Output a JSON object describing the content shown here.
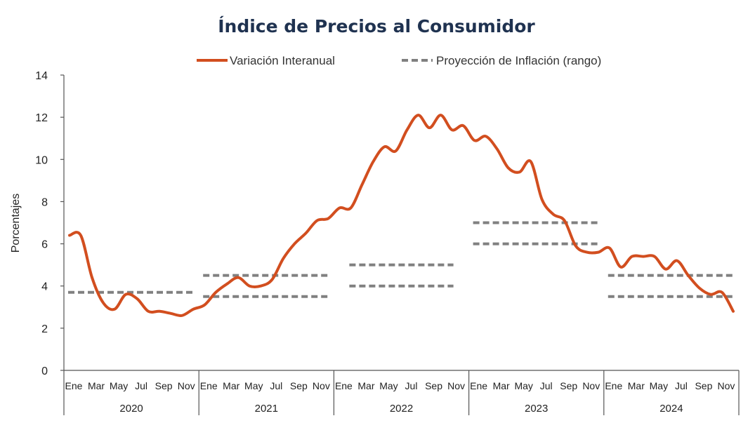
{
  "chart_data": {
    "type": "line",
    "title": "Índice de Precios al Consumidor",
    "ylabel": "Porcentajes",
    "xlabel": "",
    "ylim": [
      0,
      14
    ],
    "yticks": [
      0,
      2,
      4,
      6,
      8,
      10,
      12,
      14
    ],
    "grid": false,
    "legend_position": "top",
    "years": [
      "2020",
      "2021",
      "2022",
      "2023",
      "2024"
    ],
    "month_tick_labels": [
      "Ene",
      "Mar",
      "May",
      "Jul",
      "Sep",
      "Nov"
    ],
    "series": [
      {
        "name": "Variación Interanual",
        "color": "#d24e1f",
        "style": "solid",
        "values": [
          6.4,
          6.4,
          4.4,
          3.2,
          2.9,
          3.6,
          3.4,
          2.8,
          2.8,
          2.7,
          2.6,
          2.9,
          3.1,
          3.7,
          4.1,
          4.4,
          4.0,
          4.0,
          4.3,
          5.3,
          6.0,
          6.5,
          7.1,
          7.2,
          7.7,
          7.7,
          8.8,
          9.9,
          10.6,
          10.4,
          11.4,
          12.1,
          11.5,
          12.1,
          11.4,
          11.6,
          10.9,
          11.1,
          10.5,
          9.6,
          9.4,
          9.9,
          8.1,
          7.4,
          7.1,
          5.9,
          5.6,
          5.6,
          5.8,
          4.9,
          5.4,
          5.4,
          5.4,
          4.8,
          5.2,
          4.5,
          3.9,
          3.6,
          3.7,
          2.8
        ]
      },
      {
        "name": "Proyección de Inflación (rango)",
        "color": "#808080",
        "style": "dashed",
        "ranges": [
          {
            "year": "2020",
            "upper": 3.7,
            "lower": 3.7
          },
          {
            "year": "2021",
            "upper": 4.5,
            "lower": 3.5
          },
          {
            "year": "2022",
            "upper": 5.0,
            "lower": 4.0
          },
          {
            "year": "2023",
            "upper": 7.0,
            "lower": 6.0
          },
          {
            "year": "2024",
            "upper": 4.5,
            "lower": 3.5
          }
        ]
      }
    ]
  }
}
